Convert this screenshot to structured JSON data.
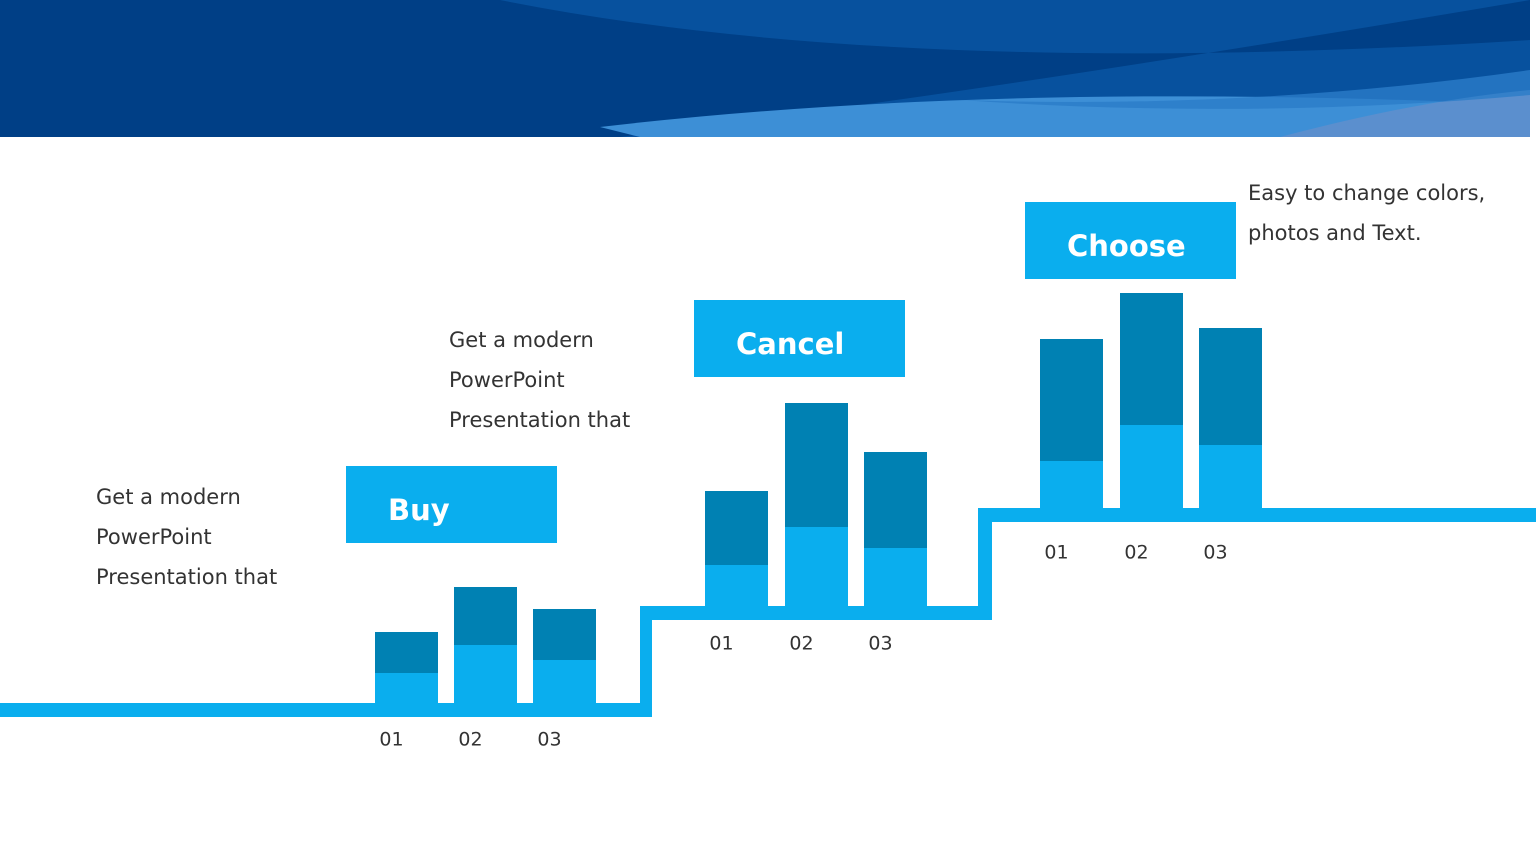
{
  "chart_data": [
    {
      "type": "bar",
      "stacked": true,
      "title": "Buy",
      "annotation": [
        "Get a modern",
        "PowerPoint",
        "Presentation that"
      ],
      "categories": [
        "01",
        "02",
        "03"
      ],
      "series": [
        {
          "color": "#0aaeee",
          "values": [
            30,
            58,
            43
          ]
        },
        {
          "color": "#0081b3",
          "values": [
            41,
            58,
            51
          ]
        }
      ]
    },
    {
      "type": "bar",
      "stacked": true,
      "title": "Cancel",
      "annotation": [
        "Get a modern",
        "PowerPoint",
        "Presentation that"
      ],
      "categories": [
        "01",
        "02",
        "03"
      ],
      "series": [
        {
          "color": "#0aaeee",
          "values": [
            41,
            79,
            58
          ]
        },
        {
          "color": "#0081b3",
          "values": [
            74,
            124,
            96
          ]
        }
      ]
    },
    {
      "type": "bar",
      "stacked": true,
      "title": "Choose",
      "annotation": [
        "Easy to change colors,",
        "photos and Text."
      ],
      "categories": [
        "01",
        "02",
        "03"
      ],
      "series": [
        {
          "color": "#0aaeee",
          "values": [
            47,
            83,
            63
          ]
        },
        {
          "color": "#0081b3",
          "values": [
            122,
            132,
            117
          ]
        }
      ]
    }
  ]
}
